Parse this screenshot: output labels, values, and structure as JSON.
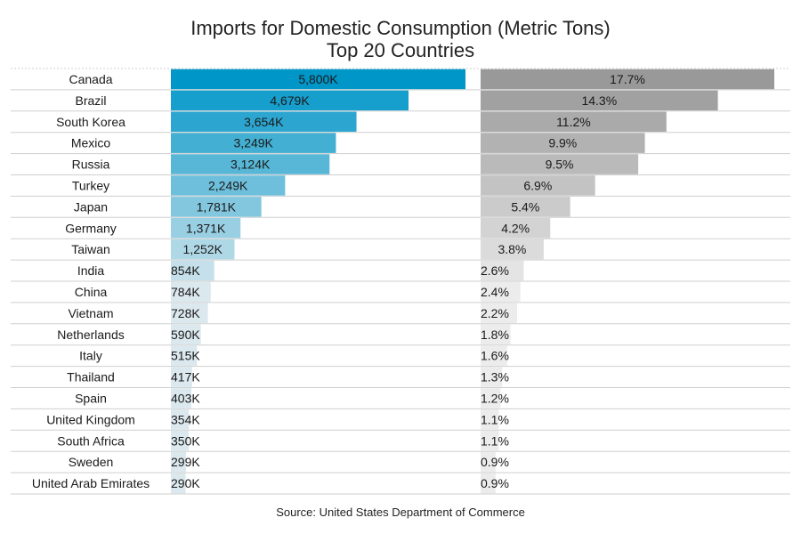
{
  "title": "Imports for Domestic Consumption (Metric Tons)",
  "subtitle": "Top 20 Countries",
  "source": "Source: United States Department of Commerce",
  "colors": {
    "blue_dark": "#0096c8",
    "blue_light": "#dbe8ee",
    "gray_dark": "#999999",
    "gray_light": "#ececec",
    "rule": "#cfcfcf"
  },
  "chart_data": {
    "type": "bar",
    "orientation": "horizontal",
    "categories": [
      "Canada",
      "Brazil",
      "South Korea",
      "Mexico",
      "Russia",
      "Turkey",
      "Japan",
      "Germany",
      "Taiwan",
      "India",
      "China",
      "Vietnam",
      "Netherlands",
      "Italy",
      "Thailand",
      "Spain",
      "United Kingdom",
      "South Africa",
      "Sweden",
      "United Arab Emirates"
    ],
    "series": [
      {
        "values": [
          5800,
          4679,
          3654,
          3249,
          3124,
          2249,
          1781,
          1371,
          1252,
          854,
          784,
          728,
          590,
          515,
          417,
          403,
          354,
          350,
          299,
          290
        ],
        "labels": [
          "5,800K",
          "4,679K",
          "3,654K",
          "3,249K",
          "3,124K",
          "2,249K",
          "1,781K",
          "1,371K",
          "1,252K",
          "854K",
          "784K",
          "728K",
          "590K",
          "515K",
          "417K",
          "403K",
          "354K",
          "350K",
          "299K",
          "290K"
        ]
      },
      {
        "values": [
          17.7,
          14.3,
          11.2,
          9.9,
          9.5,
          6.9,
          5.4,
          4.2,
          3.8,
          2.6,
          2.4,
          2.2,
          1.8,
          1.6,
          1.3,
          1.2,
          1.1,
          1.1,
          0.9,
          0.9
        ],
        "labels": [
          "17.7%",
          "14.3%",
          "11.2%",
          "9.9%",
          "9.5%",
          "6.9%",
          "5.4%",
          "4.2%",
          "3.8%",
          "2.6%",
          "2.4%",
          "2.2%",
          "1.8%",
          "1.6%",
          "1.3%",
          "1.2%",
          "1.1%",
          "1.1%",
          "0.9%",
          "0.9%"
        ]
      }
    ]
  }
}
